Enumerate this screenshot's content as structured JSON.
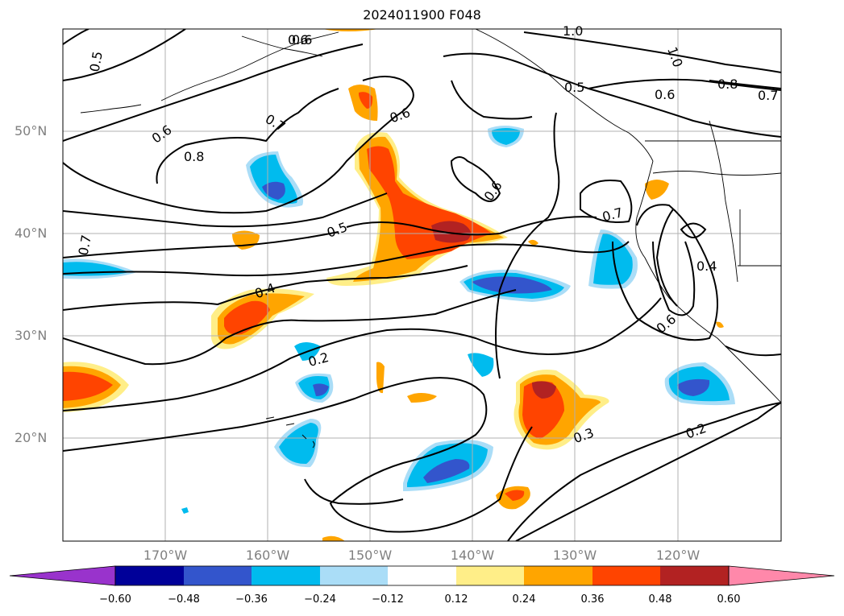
{
  "title": "2024011900 F048",
  "map": {
    "projection": "PlateCarree",
    "extent_lon": [
      -180,
      -110
    ],
    "extent_lat": [
      10,
      60
    ],
    "lat_labels": [
      "50°N",
      "40°N",
      "30°N",
      "20°N"
    ],
    "lon_labels": [
      "170°W",
      "160°W",
      "150°W",
      "140°W",
      "130°W",
      "120°W"
    ],
    "gridlines": true,
    "coastlines": true,
    "contour_color": "#000000",
    "contour_labels": [
      "0.5",
      "0.6",
      "0.6",
      "1.0",
      "1.0",
      "0.8",
      "0.7",
      "0.6",
      "0.5",
      "0.6",
      "0.7",
      "0.8",
      "0.6",
      "0.7",
      "0.7",
      "0.5",
      "0.4",
      "0.4",
      "0.6",
      "0.2",
      "0.3",
      "0.2",
      "0.6"
    ]
  },
  "colorbar": {
    "extend": "both",
    "ticks": [
      "−0.60",
      "−0.48",
      "−0.36",
      "−0.24",
      "−0.12",
      "0.12",
      "0.24",
      "0.36",
      "0.48",
      "0.60"
    ],
    "colors": [
      "#9933cc",
      "#000099",
      "#3355cc",
      "#00bbee",
      "#aaddf7",
      "#ffffff",
      "#ffee88",
      "#ffa500",
      "#ff4400",
      "#b22222",
      "#ff88aa"
    ]
  }
}
